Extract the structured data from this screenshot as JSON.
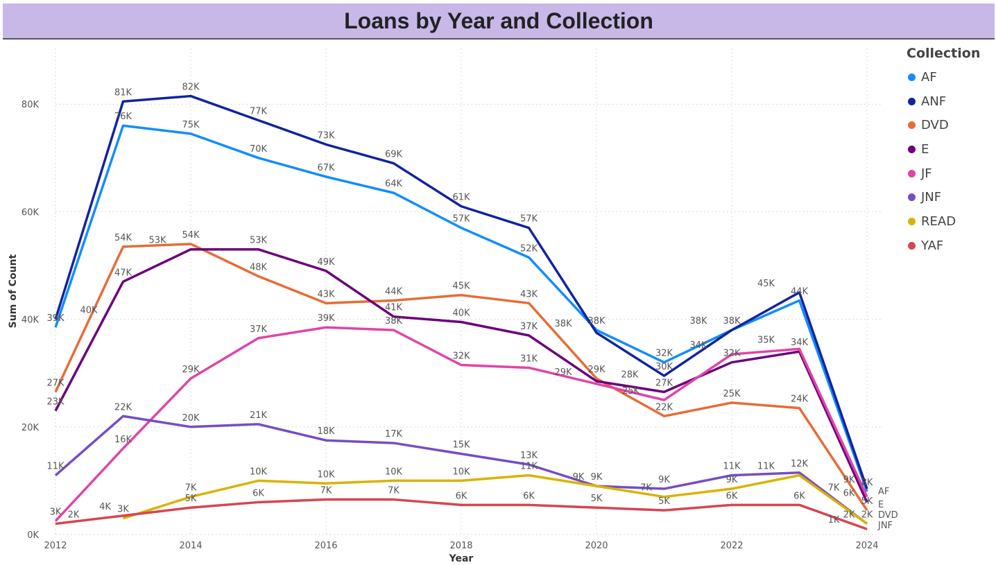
{
  "chart_data": {
    "type": "line",
    "title": "Loans by Year and Collection",
    "xlabel": "Year",
    "ylabel": "Sum of Count",
    "x": [
      2012,
      2013,
      2014,
      2015,
      2016,
      2017,
      2018,
      2019,
      2020,
      2021,
      2022,
      2023,
      2024
    ],
    "xticks": [
      "2012",
      "2014",
      "2016",
      "2018",
      "2020",
      "2022",
      "2024"
    ],
    "yticks": [
      "0K",
      "20K",
      "40K",
      "60K",
      "80K"
    ],
    "ylim": [
      0,
      90
    ],
    "yunit": "thousands",
    "grid": true,
    "legend": {
      "title": "Collection",
      "placement": "right"
    },
    "series": [
      {
        "name": "AF",
        "color": "#118dff",
        "values": [
          38.5,
          76,
          74.5,
          70,
          66.5,
          63.5,
          57,
          51.5,
          38,
          32,
          38,
          43.5,
          8
        ]
      },
      {
        "name": "ANF",
        "color": "#12239e",
        "values": [
          40,
          80.5,
          81.5,
          77,
          72.5,
          69,
          61,
          57,
          37.5,
          29.5,
          38,
          45,
          8.5
        ]
      },
      {
        "name": "DVD",
        "color": "#e66c37",
        "values": [
          26.5,
          53.5,
          54,
          48,
          43,
          43.5,
          44.5,
          43,
          29,
          22,
          24.5,
          23.5,
          4.5
        ]
      },
      {
        "name": "E",
        "color": "#6b007b",
        "values": [
          23,
          47,
          53,
          53,
          49,
          40.5,
          39.5,
          37,
          28.5,
          26.5,
          32,
          34,
          6
        ]
      },
      {
        "name": "JF",
        "color": "#e044a7",
        "values": [
          2.5,
          16,
          29,
          36.5,
          38.5,
          38,
          31.5,
          31,
          28,
          25,
          33.5,
          34.5,
          7
        ]
      },
      {
        "name": "JNF",
        "color": "#744ec2",
        "values": [
          11,
          22,
          20,
          20.5,
          17.5,
          17,
          15,
          13,
          9,
          8.5,
          11,
          11.5,
          2
        ]
      },
      {
        "name": "READ",
        "color": "#d9b300",
        "values": [
          null,
          3,
          7,
          10,
          9.5,
          10,
          10,
          11,
          9,
          7,
          8.5,
          11,
          2
        ]
      },
      {
        "name": "YAF",
        "color": "#d64550",
        "values": [
          2,
          3.5,
          5,
          6,
          6.5,
          6.5,
          5.5,
          5.5,
          5,
          4.5,
          5.5,
          5.5,
          1
        ]
      }
    ],
    "end_labels": [
      "AF",
      "E",
      "DVD",
      "JNF"
    ]
  }
}
